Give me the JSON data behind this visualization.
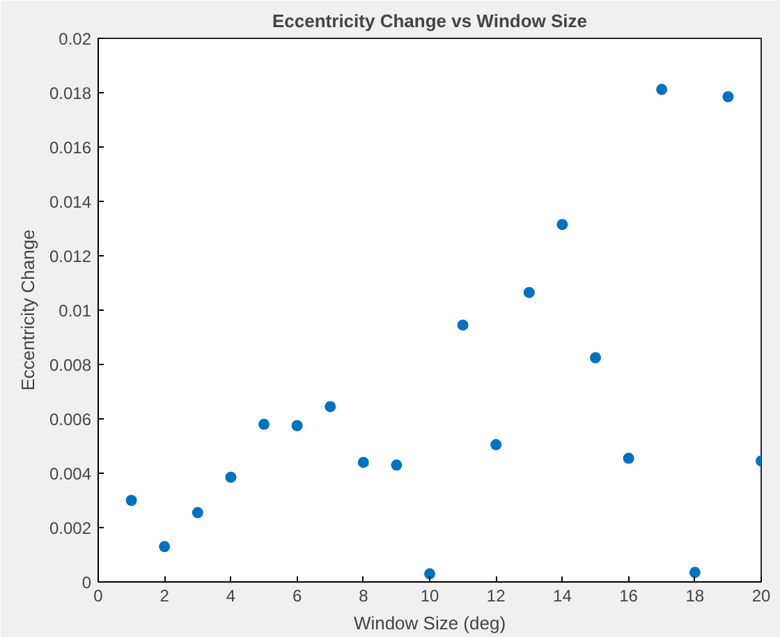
{
  "chart_data": {
    "type": "scatter",
    "title": "Eccentricity Change vs Window Size",
    "xlabel": "Window Size (deg)",
    "ylabel": "Eccentricity Change",
    "x": [
      1,
      2,
      3,
      4,
      5,
      6,
      7,
      8,
      9,
      10,
      11,
      12,
      13,
      14,
      15,
      16,
      17,
      18,
      19,
      20
    ],
    "series": [
      {
        "color": "#0072bd",
        "values": [
          0.003,
          0.0013,
          0.00255,
          0.00385,
          0.0058,
          0.00575,
          0.00645,
          0.0044,
          0.0043,
          0.0003,
          0.00945,
          0.00505,
          0.01065,
          0.01315,
          0.00825,
          0.00455,
          0.01812,
          0.00035,
          0.01785,
          0.00445
        ]
      }
    ],
    "xlim": [
      0,
      20
    ],
    "ylim": [
      0,
      0.02
    ],
    "xticks": [
      0,
      2,
      4,
      6,
      8,
      10,
      12,
      14,
      16,
      18,
      20
    ],
    "yticks": [
      0,
      0.002,
      0.004,
      0.006,
      0.008,
      0.01,
      0.012,
      0.014,
      0.016,
      0.018,
      0.02
    ],
    "marker": "circle",
    "grid": false
  }
}
